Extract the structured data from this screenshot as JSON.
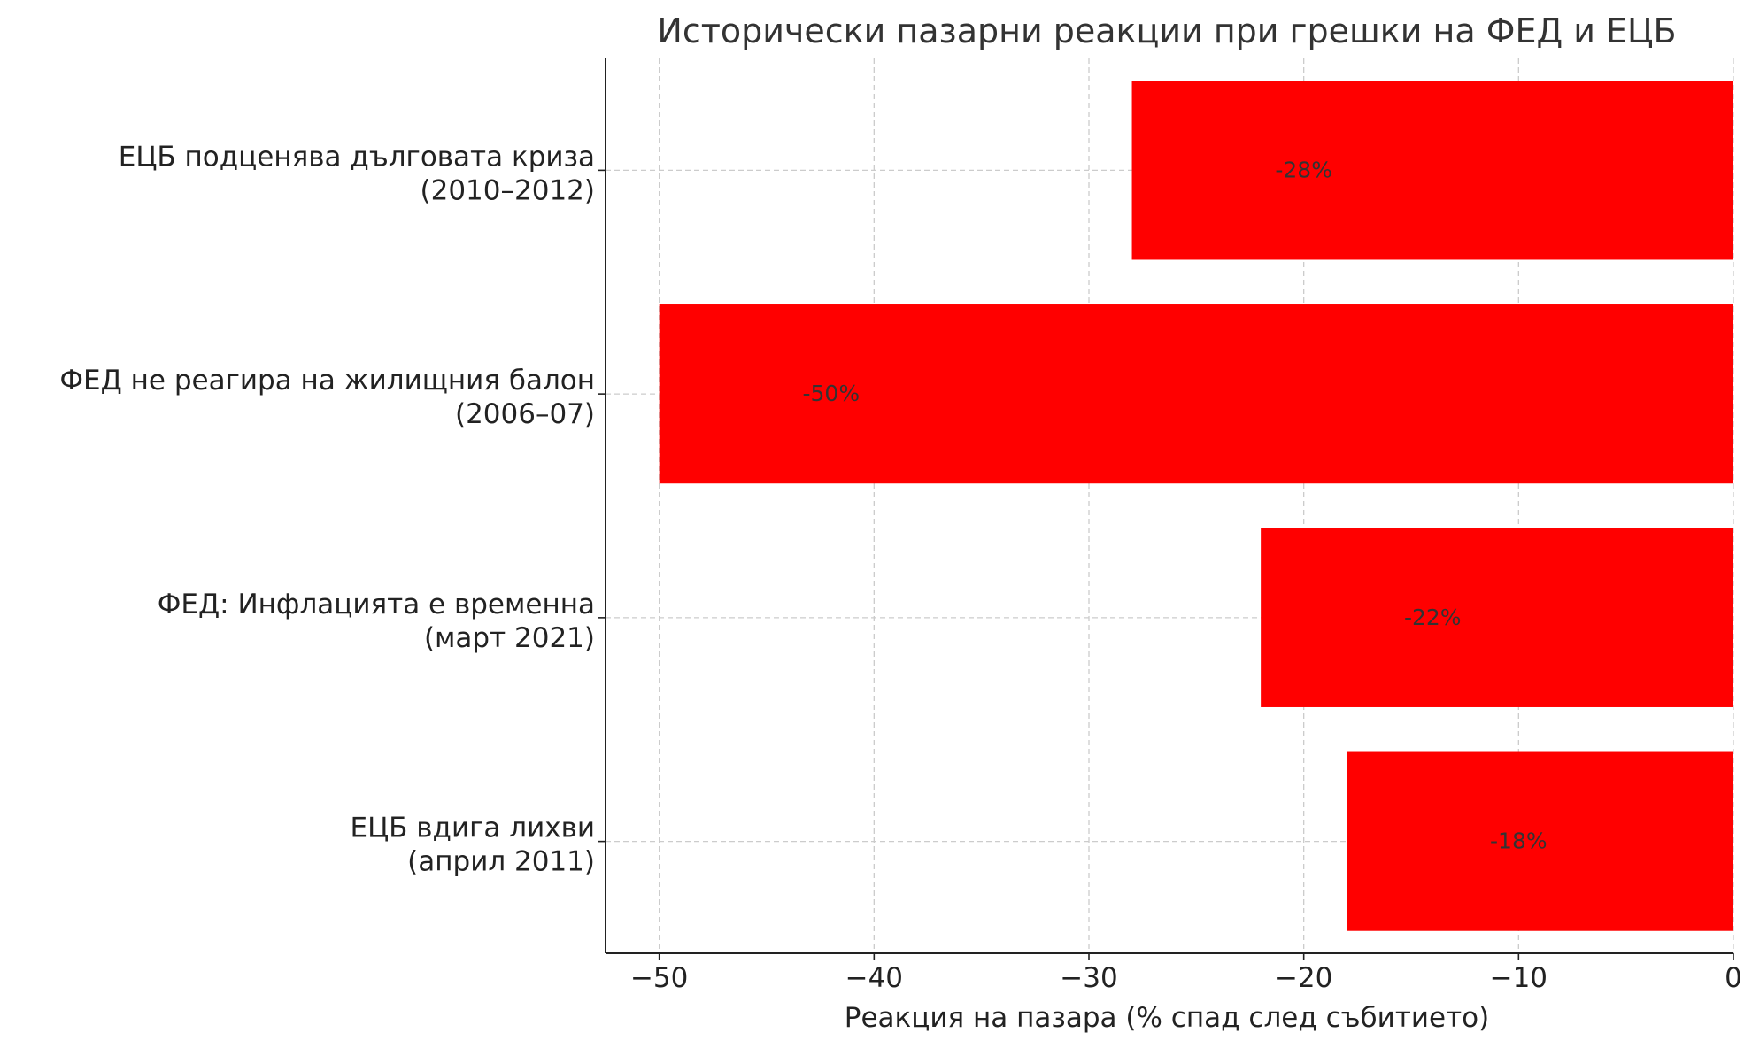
{
  "chart_data": {
    "type": "bar",
    "orientation": "horizontal",
    "title": "Исторически пазарни реакции при грешки на ФЕД и ЕЦБ",
    "xlabel": "Реакция на пазара (% спад след събитието)",
    "ylabel": "",
    "xlim": [
      -52.5,
      0
    ],
    "xticks": [
      -50,
      -40,
      -30,
      -20,
      -10,
      0
    ],
    "xtick_labels": [
      "−50",
      "−40",
      "−30",
      "−20",
      "−10",
      "0"
    ],
    "grid": true,
    "categories": [
      [
        "ЕЦБ подценява дълговата криза",
        "(2010–2012)"
      ],
      [
        "ФЕД не реагира на жилищния балон",
        "(2006–07)"
      ],
      [
        "ФЕД: Инфлацията е временна",
        "(март 2021)"
      ],
      [
        "ЕЦБ вдига лихви",
        "(април 2011)"
      ]
    ],
    "values": [
      -28,
      -50,
      -22,
      -18
    ],
    "data_labels": [
      "-28%",
      "-50%",
      "-22%",
      "-18%"
    ],
    "bar_color": "#ff0000"
  }
}
